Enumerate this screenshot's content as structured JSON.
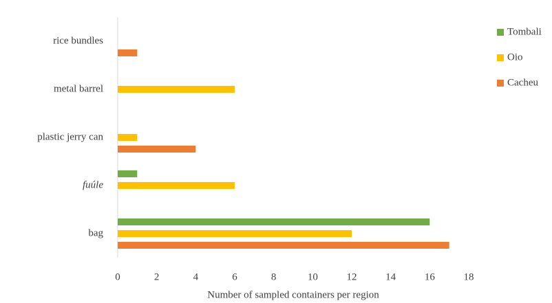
{
  "chart_data": {
    "type": "hbar",
    "categories": [
      "rice bundles",
      "metal barrel",
      "plastic jerry can",
      "fuúle",
      "bag"
    ],
    "italic_categories": [
      "fuúle"
    ],
    "series": [
      {
        "name": "Tombali",
        "color": "#70ad47",
        "values": [
          0,
          0,
          0,
          1,
          16
        ]
      },
      {
        "name": "Oio",
        "color": "#ffc000",
        "values": [
          0,
          6,
          1,
          6,
          12
        ]
      },
      {
        "name": "Cacheu",
        "color": "#ed7d31",
        "values": [
          1,
          0,
          4,
          0,
          17
        ]
      }
    ],
    "x_label": "Number of sampled containers per region",
    "xlim": [
      0,
      18
    ],
    "xticks": [
      0,
      2,
      4,
      6,
      8,
      10,
      12,
      14,
      16,
      18
    ],
    "grid": false,
    "legend": "top-right"
  }
}
